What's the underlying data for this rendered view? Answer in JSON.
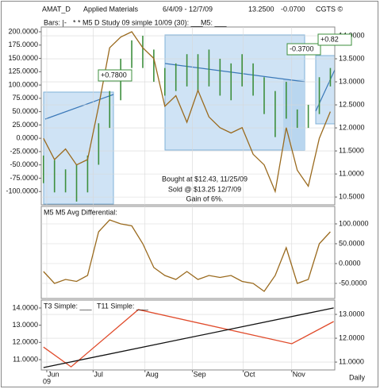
{
  "header": {
    "symbol": "AMAT_D",
    "name": "Applied Materials",
    "range": "6/4/09 - 12/7/09",
    "last": "13.2500",
    "change": "-0.0700",
    "source": "CGTS ©",
    "extra_legend": "M5: ___",
    "year": "09",
    "period": "Daily"
  },
  "chart_data": [
    {
      "type": "stock",
      "annotations": [
        "+0.7800",
        "-0.3700",
        "+0.82",
        "Bought at $12.43, 11/25/09",
        "Sold @ $13.25 12/7/09",
        "Gain of 6%."
      ],
      "x": [
        0,
        1,
        2,
        3,
        4,
        5,
        6,
        7,
        8,
        9,
        10,
        11,
        12,
        13,
        14,
        15,
        16,
        17,
        18,
        19,
        20,
        21,
        22,
        23,
        24,
        25,
        26
      ],
      "xlim": [
        -0.2,
        26.4
      ],
      "ylim": [
        -125,
        209
      ],
      "yticks": [
        {
          "value": 200,
          "label": "200.0000"
        },
        {
          "value": 175,
          "label": "175.0000"
        },
        {
          "value": 150,
          "label": "150.0000"
        },
        {
          "value": 125,
          "label": "125.0000"
        },
        {
          "value": 100,
          "label": "100.0000"
        },
        {
          "value": 75,
          "label": "75.0000"
        },
        {
          "value": 50,
          "label": "50.0000"
        },
        {
          "value": 25,
          "label": "25.0000"
        },
        {
          "value": 0,
          "label": "0.0000"
        },
        {
          "value": -25,
          "label": "-25.0000"
        },
        {
          "value": -50,
          "label": "-50.0000"
        },
        {
          "value": -75,
          "label": "-75.0000"
        },
        {
          "value": -100,
          "label": "-100.0000"
        }
      ],
      "y2lim": [
        10.33,
        14.19
      ],
      "y2ticks": [
        {
          "value": 14,
          "label": "14.0000"
        },
        {
          "value": 13.5,
          "label": "13.5000"
        },
        {
          "value": 13,
          "label": "13.0000"
        },
        {
          "value": 12.5,
          "label": "12.5000"
        },
        {
          "value": 12,
          "label": "12.0000"
        },
        {
          "value": 11.5,
          "label": "11.5000"
        },
        {
          "value": 11,
          "label": "11.0000"
        },
        {
          "value": 10.5,
          "label": "10.5000"
        }
      ],
      "grid": true,
      "series": [
        {
          "name": "Bars: |-",
          "color": "#3d8f3d",
          "axis": "y2",
          "low": [
            10.8,
            10.6,
            10.6,
            10.4,
            10.6,
            11.2,
            12.0,
            12.6,
            13.3,
            13.3,
            13.0,
            12.7,
            12.8,
            12.9,
            12.8,
            12.9,
            12.7,
            12.6,
            12.9,
            12.7,
            12.3,
            11.8,
            12.2,
            12.0,
            12.0,
            12.3,
            12.9
          ],
          "high": [
            11.4,
            11.3,
            11.1,
            11.2,
            11.4,
            12.1,
            12.8,
            13.5,
            13.9,
            14.0,
            13.7,
            13.3,
            13.4,
            13.6,
            13.6,
            13.7,
            13.5,
            13.4,
            13.6,
            13.4,
            13.1,
            12.8,
            13.0,
            12.4,
            12.5,
            13.1,
            13.3
          ]
        },
        {
          "name": "* * M5 D Study 09 simple 10/09 (30): ___",
          "color": "#9a6a1e",
          "values": [
            0,
            -40,
            -20,
            -50,
            -40,
            60,
            170,
            190,
            200,
            170,
            150,
            60,
            80,
            30,
            90,
            40,
            20,
            10,
            20,
            -30,
            -50,
            -100,
            20,
            -60,
            -90,
            0,
            50
          ]
        }
      ]
    },
    {
      "type": "line",
      "x": [
        0,
        1,
        2,
        3,
        4,
        5,
        6,
        7,
        8,
        9,
        10,
        11,
        12,
        13,
        14,
        15,
        16,
        17,
        18,
        19,
        20,
        21,
        22,
        23,
        24,
        25,
        26
      ],
      "xlim": [
        -0.2,
        26.4
      ],
      "y2lim": [
        -88,
        144
      ],
      "y2ticks": [
        {
          "value": 100,
          "label": "100.0000"
        },
        {
          "value": 50,
          "label": "50.0000"
        },
        {
          "value": 0,
          "label": "0.0000"
        },
        {
          "value": -50,
          "label": "-50.0000"
        }
      ],
      "grid": true,
      "series": [
        {
          "name": "M5 M5 Avg Differential:",
          "color": "#9a6a1e",
          "axis": "y2",
          "values": [
            -20,
            -50,
            -40,
            -45,
            -30,
            80,
            110,
            100,
            95,
            50,
            -10,
            -30,
            -40,
            -20,
            -40,
            -30,
            -35,
            -30,
            -45,
            -50,
            -70,
            -30,
            40,
            -50,
            -40,
            50,
            80
          ]
        }
      ]
    },
    {
      "type": "line",
      "xlim": [
        -0.2,
        26.4
      ],
      "xticks": [
        {
          "value": 0.3,
          "label": "Jun"
        },
        {
          "value": 4.5,
          "label": "Jul"
        },
        {
          "value": 9.2,
          "label": "Aug"
        },
        {
          "value": 13.5,
          "label": "Sep"
        },
        {
          "value": 18.1,
          "label": "Oct"
        },
        {
          "value": 22.5,
          "label": "Nov"
        }
      ],
      "ylim": [
        10.4,
        14.46
      ],
      "yticks": [
        {
          "value": 14,
          "label": "14.0000"
        },
        {
          "value": 13,
          "label": "13.0000"
        },
        {
          "value": 12,
          "label": "12.0000"
        },
        {
          "value": 11,
          "label": "11.0000"
        }
      ],
      "y2lim": [
        10.67,
        13.6
      ],
      "y2ticks": [
        {
          "value": 13,
          "label": "13.0000"
        },
        {
          "value": 12,
          "label": "12.0000"
        },
        {
          "value": 11,
          "label": "11.0000"
        }
      ],
      "grid": true,
      "series": [
        {
          "name": "T3 Simple: ___",
          "color": "#e04a2a",
          "axis": "y2",
          "x": [
            0,
            2.5,
            8.6,
            22.5,
            26.3
          ],
          "values": [
            11.63,
            10.8,
            13.2,
            11.77,
            12.7
          ]
        },
        {
          "name": "T11 Simple: ___",
          "color": "#111111",
          "axis": "y2",
          "x": [
            0,
            26.3
          ],
          "values": [
            10.77,
            13.27
          ]
        }
      ]
    }
  ]
}
